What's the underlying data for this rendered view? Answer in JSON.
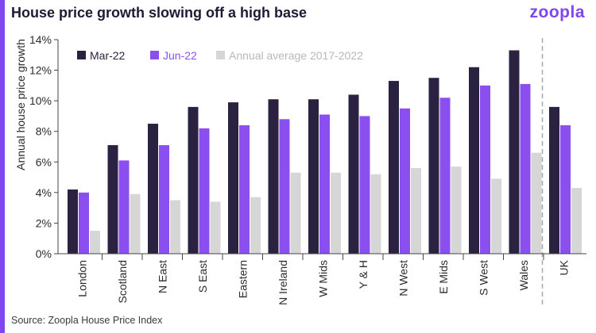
{
  "header": {
    "title": "House price growth slowing off a high base",
    "logo_text": "zoopla"
  },
  "footer": {
    "source": "Source: Zoopla House Price Index"
  },
  "colors": {
    "accent": "#8046f1",
    "mar22": "#2b2140",
    "jun22": "#8b4ff0",
    "average": "#d6d6d6",
    "text": "#2b2b2b",
    "title": "#1f1a33"
  },
  "chart_data": {
    "type": "bar",
    "title": "House price growth slowing off a high base",
    "ylabel": "Annual house price growth",
    "xlabel": "",
    "ylim": [
      0,
      14
    ],
    "yticks": [
      "0%",
      "2%",
      "4%",
      "6%",
      "8%",
      "10%",
      "12%",
      "14%"
    ],
    "grid": false,
    "legend_position": "top-left",
    "categories": [
      "London",
      "Scotland",
      "N East",
      "S East",
      "Eastern",
      "N Ireland",
      "W Mids",
      "Y & H",
      "N West",
      "E Mids",
      "S West",
      "Wales",
      "UK"
    ],
    "series": [
      {
        "name": "Mar-22",
        "values": [
          4.2,
          7.1,
          8.5,
          9.6,
          9.9,
          10.1,
          10.1,
          10.4,
          11.3,
          11.5,
          12.2,
          13.3,
          9.6
        ]
      },
      {
        "name": "Jun-22",
        "values": [
          4.0,
          6.1,
          7.1,
          8.2,
          8.4,
          8.8,
          9.1,
          9.0,
          9.5,
          10.2,
          11.0,
          11.1,
          8.4
        ]
      },
      {
        "name": "Annual average 2017-2022",
        "values": [
          1.5,
          3.9,
          3.5,
          3.4,
          3.7,
          5.3,
          5.3,
          5.2,
          5.6,
          5.7,
          4.9,
          6.6,
          4.3
        ]
      }
    ],
    "separator_before": "UK"
  }
}
